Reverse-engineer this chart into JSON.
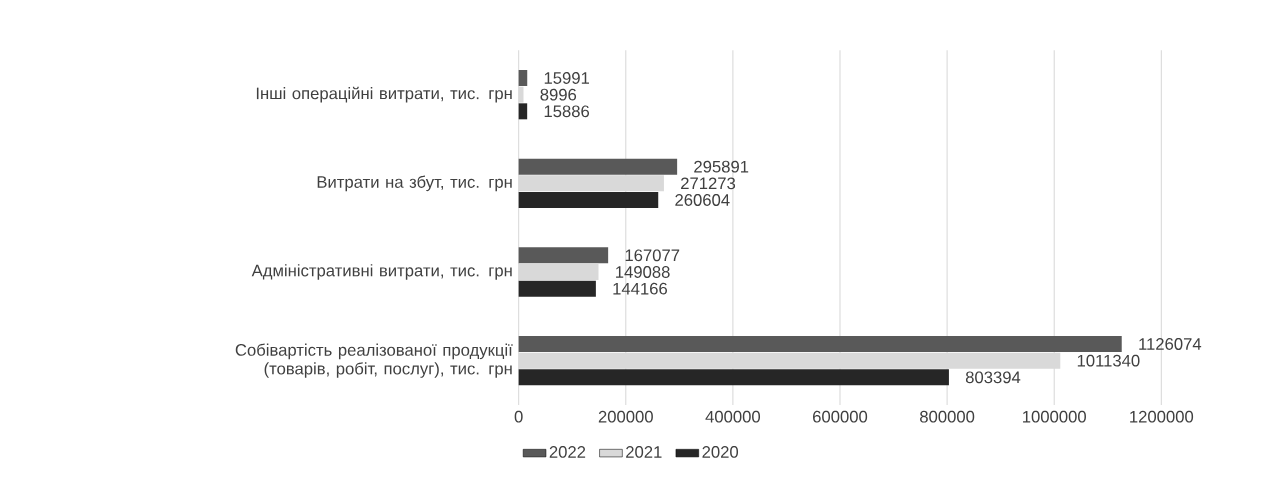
{
  "chart_data": {
    "type": "bar",
    "orientation": "horizontal",
    "categories": [
      "Інші операційні витрати, тис. грн",
      "Витрати на збут, тис. грн",
      "Адміністративні витрати, тис. грн",
      "Собівартість реалізованої продукції (товарів, робіт, послуг), тис. грн"
    ],
    "series": [
      {
        "name": "2022",
        "color": "#595959",
        "values": [
          15991,
          295891,
          167077,
          1126074
        ]
      },
      {
        "name": "2021",
        "color": "#d9d9d9",
        "values": [
          8996,
          271273,
          149088,
          1011340
        ]
      },
      {
        "name": "2020",
        "color": "#262626",
        "values": [
          15886,
          260604,
          144166,
          803394
        ]
      }
    ],
    "xlim": [
      0,
      1200000
    ],
    "xticks": [
      0,
      200000,
      400000,
      600000,
      800000,
      1000000,
      1200000
    ],
    "grid": "x",
    "legend": "bottom",
    "data_labels": true
  }
}
